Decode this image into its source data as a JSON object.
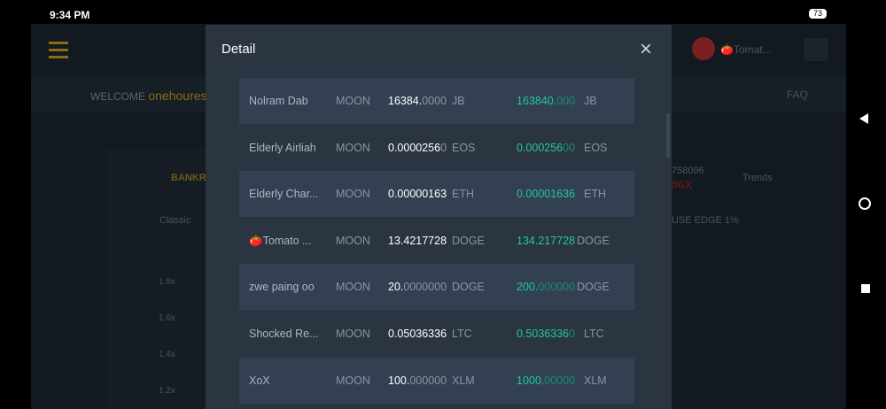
{
  "status_bar": {
    "time": "9:34 PM",
    "battery": "73"
  },
  "background": {
    "welcome": "WELCOME",
    "username": "onehoures",
    "user_menu": "🍅Tomat...",
    "faq": "FAQ",
    "bankroll": "BANKR",
    "tab": "Classic",
    "number": "758096",
    "multiplier": "06X",
    "trends": "Trends",
    "house_edge": "USE EDGE 1%",
    "axis_labels": [
      "1.8x",
      "1.6x",
      "1.4x",
      "1.2x"
    ]
  },
  "modal": {
    "title": "Detail",
    "close": "×",
    "rows": [
      {
        "name": "Nolram Dab",
        "type": "MOON",
        "amount": [
          "16384.",
          "0000"
        ],
        "currency": "JB",
        "payout": [
          "163840.",
          "000"
        ],
        "payout_currency": "JB"
      },
      {
        "name": "Elderly Airliah",
        "type": "MOON",
        "amount": [
          "0.0000256",
          "0"
        ],
        "currency": "EOS",
        "payout": [
          "0.000256",
          "00"
        ],
        "payout_currency": "EOS"
      },
      {
        "name": "Elderly Char...",
        "type": "MOON",
        "amount": [
          "0.00000163",
          ""
        ],
        "currency": "ETH",
        "payout": [
          "0.00001636",
          ""
        ],
        "payout_currency": "ETH"
      },
      {
        "name": "🍅Tomato ...",
        "type": "MOON",
        "amount": [
          "13.4217728",
          ""
        ],
        "currency": "DOGE",
        "payout": [
          "134.217728",
          ""
        ],
        "payout_currency": "DOGE"
      },
      {
        "name": "zwe paing oo",
        "type": "MOON",
        "amount": [
          "20.",
          "0000000"
        ],
        "currency": "DOGE",
        "payout": [
          "200.",
          "000000"
        ],
        "payout_currency": "DOGE"
      },
      {
        "name": "Shocked Re...",
        "type": "MOON",
        "amount": [
          "0.05036336",
          ""
        ],
        "currency": "LTC",
        "payout": [
          "0.5036336",
          "0"
        ],
        "payout_currency": "LTC"
      },
      {
        "name": "XoX",
        "type": "MOON",
        "amount": [
          "100.",
          "000000"
        ],
        "currency": "XLM",
        "payout": [
          "1000.",
          "00000"
        ],
        "payout_currency": "XLM"
      }
    ]
  }
}
